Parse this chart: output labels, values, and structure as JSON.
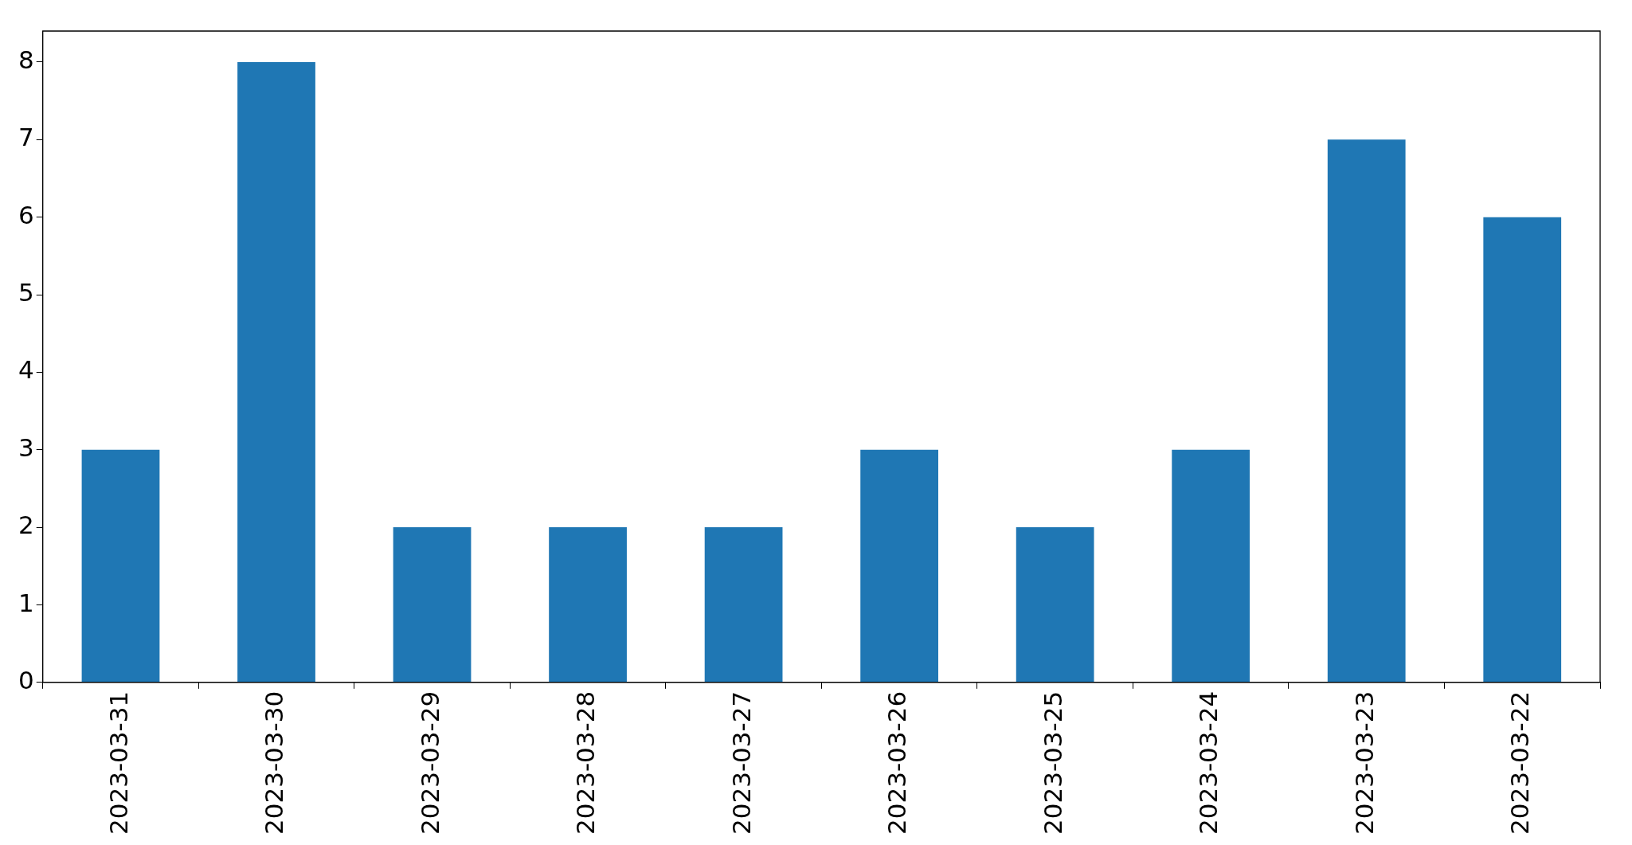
{
  "chart_data": {
    "type": "bar",
    "categories": [
      "2023-03-31",
      "2023-03-30",
      "2023-03-29",
      "2023-03-28",
      "2023-03-27",
      "2023-03-26",
      "2023-03-25",
      "2023-03-24",
      "2023-03-23",
      "2023-03-22"
    ],
    "values": [
      3,
      8,
      2,
      2,
      2,
      3,
      2,
      3,
      7,
      6
    ],
    "color": "#1f77b4",
    "ylim": [
      0,
      8.4
    ],
    "yticks": [
      0,
      1,
      2,
      3,
      4,
      5,
      6,
      7,
      8
    ],
    "grid": false,
    "legend": false
  }
}
